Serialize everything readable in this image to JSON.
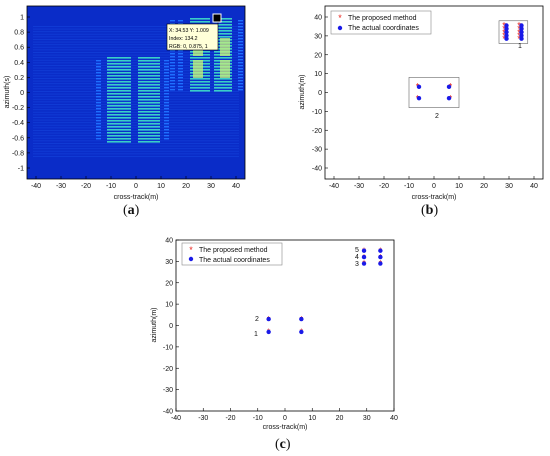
{
  "figure": {
    "captions": {
      "a": "a",
      "b": "b",
      "c": "c"
    }
  },
  "panel_a": {
    "xlabel": "cross-track(m)",
    "ylabel": "azimuth(s)",
    "xticks": [
      "-40",
      "-30",
      "-20",
      "-10",
      "0",
      "10",
      "20",
      "30",
      "40"
    ],
    "yticks": [
      "1",
      "0.8",
      "0.6",
      "0.4",
      "0.2",
      "0",
      "-0.2",
      "-0.4",
      "-0.6",
      "-0.8",
      "-1"
    ],
    "datatip": {
      "line1": "X: 34.53 Y: 1.009",
      "line2": "Index: 134.2",
      "line3": "RGB: 0, 0.875, 1"
    },
    "colors": {
      "background": "#0a2cc8",
      "mid": "#1f6fff",
      "high": "#3fe0c8",
      "peak": "#c8f27a"
    }
  },
  "chart_data": [
    {
      "panel": "b",
      "type": "scatter",
      "xlabel": "cross-track(m)",
      "ylabel": "azimuth(m)",
      "xlim": [
        -40,
        40
      ],
      "ylim": [
        -40,
        40
      ],
      "xticks": [
        "-40",
        "-30",
        "-20",
        "-10",
        "0",
        "10",
        "20",
        "30",
        "40"
      ],
      "yticks": [
        "40",
        "30",
        "20",
        "10",
        "0",
        "-10",
        "-20",
        "-30",
        "-40"
      ],
      "legend": {
        "placement": "top-left",
        "proposed": "The proposed method",
        "actual": "The actual coordinates"
      },
      "series": [
        {
          "name": "The proposed method",
          "color": "#e8201a",
          "marker": "star",
          "x": [
            -6.6,
            -6.6,
            6.6,
            6.6,
            28,
            28,
            28,
            28,
            28,
            34,
            34,
            34,
            34,
            34
          ],
          "y": [
            3.2,
            -3.2,
            3.2,
            -3.2,
            28.5,
            30.2,
            32,
            33.8,
            35.5,
            28.5,
            30.2,
            32,
            33.8,
            35.5
          ]
        },
        {
          "name": "The actual coordinates",
          "color": "#1a1ae8",
          "marker": "circle",
          "x": [
            -6,
            -6,
            6,
            6,
            29,
            29,
            29,
            29,
            29,
            35,
            35,
            35,
            35,
            35
          ],
          "y": [
            3,
            -3,
            3,
            -3,
            28.5,
            30.2,
            32,
            33.8,
            35.5,
            28.5,
            30.2,
            32,
            33.8,
            35.5
          ]
        }
      ],
      "annotations": [
        "1",
        "2"
      ]
    },
    {
      "panel": "c",
      "type": "scatter",
      "xlabel": "cross-track(m)",
      "ylabel": "azimuth(m)",
      "xlim": [
        -40,
        40
      ],
      "ylim": [
        -40,
        40
      ],
      "xticks": [
        "-40",
        "-30",
        "-20",
        "-10",
        "0",
        "10",
        "20",
        "30",
        "40"
      ],
      "yticks": [
        "40",
        "30",
        "20",
        "10",
        "0",
        "-10",
        "-20",
        "-30",
        "-40"
      ],
      "legend": {
        "placement": "top-left",
        "proposed": "The proposed method",
        "actual": "The actual coordinates"
      },
      "series": [
        {
          "name": "The proposed method",
          "color": "#e8201a",
          "marker": "star",
          "x": [
            -6,
            -6,
            6,
            6,
            29,
            29,
            29,
            35,
            35,
            35
          ],
          "y": [
            3,
            -3,
            3,
            -3,
            29,
            32,
            35,
            29,
            32,
            35
          ]
        },
        {
          "name": "The actual coordinates",
          "color": "#1a1ae8",
          "marker": "circle",
          "x": [
            -6,
            -6,
            6,
            6,
            29,
            29,
            29,
            35,
            35,
            35
          ],
          "y": [
            3,
            -3,
            3,
            -3,
            29,
            32,
            35,
            29,
            32,
            35
          ]
        }
      ],
      "annotations": [
        "1",
        "2",
        "3",
        "4",
        "5"
      ]
    }
  ]
}
